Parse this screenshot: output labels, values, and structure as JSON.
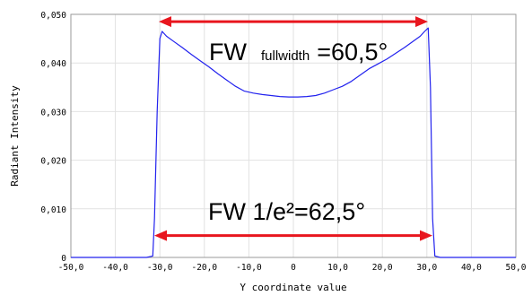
{
  "chart_data": {
    "type": "line",
    "title": "",
    "xlabel": "Y coordinate value",
    "ylabel": "Radiant Intensity",
    "xlim": [
      -50,
      50
    ],
    "ylim": [
      0,
      0.05
    ],
    "grid": true,
    "legend": "none",
    "x_ticks": [
      -50,
      -40,
      -30,
      -20,
      -10,
      0,
      10,
      20,
      30,
      40,
      50
    ],
    "x_tick_labels": [
      "-50,0",
      "-40,0",
      "-30,0",
      "-20,0",
      "-10,0",
      "0",
      "10,0",
      "20,0",
      "30,0",
      "40,0",
      "50,0"
    ],
    "y_ticks": [
      0,
      0.01,
      0.02,
      0.03,
      0.04,
      0.05
    ],
    "y_tick_labels": [
      "0",
      "0,010",
      "0,020",
      "0,030",
      "0,040",
      "0,050"
    ],
    "series": [
      {
        "color": "#2222ee",
        "x": [
          -50,
          -33,
          -31.6,
          -31.2,
          -30.6,
          -30.0,
          -29.5,
          -28.5,
          -27,
          -25,
          -23,
          -21,
          -19,
          -17,
          -15,
          -13,
          -11,
          -9,
          -7,
          -5,
          -3,
          -1,
          1,
          3,
          5,
          7,
          9,
          11,
          13,
          15,
          17,
          19,
          21,
          23,
          25,
          27,
          28.5,
          29.5,
          30.3,
          30.8,
          31.3,
          31.8,
          33,
          50
        ],
        "y": [
          0,
          0,
          0.0003,
          0.008,
          0.03,
          0.045,
          0.0465,
          0.0455,
          0.0445,
          0.0432,
          0.0418,
          0.0405,
          0.0392,
          0.0378,
          0.0365,
          0.0352,
          0.0342,
          0.0338,
          0.0335,
          0.0333,
          0.0331,
          0.033,
          0.033,
          0.0331,
          0.0333,
          0.0338,
          0.0345,
          0.0352,
          0.0362,
          0.0375,
          0.0388,
          0.0398,
          0.0408,
          0.042,
          0.0432,
          0.0445,
          0.0455,
          0.0465,
          0.0472,
          0.035,
          0.008,
          0.0003,
          0,
          0
        ]
      }
    ],
    "annotations": [
      {
        "prefix": "FW",
        "subscript": "fullwidth",
        "value": "=60,5°",
        "arrow_x": [
          -30.25,
          30.25
        ],
        "arrow_y": 0.0485,
        "color": "#e8161e"
      },
      {
        "label": "FW 1/e²=62,5°",
        "arrow_x": [
          -31.25,
          31.25
        ],
        "arrow_y": 0.0045,
        "color": "#e8161e"
      }
    ]
  }
}
